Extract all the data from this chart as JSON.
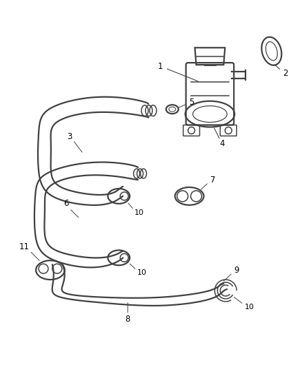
{
  "bg_color": "#ffffff",
  "line_color": "#404040",
  "label_color": "#000000",
  "figure_width": 4.38,
  "figure_height": 5.33,
  "dpi": 100,
  "lw_tube": 1.6,
  "lw_detail": 1.1,
  "fontsize": 8.5
}
